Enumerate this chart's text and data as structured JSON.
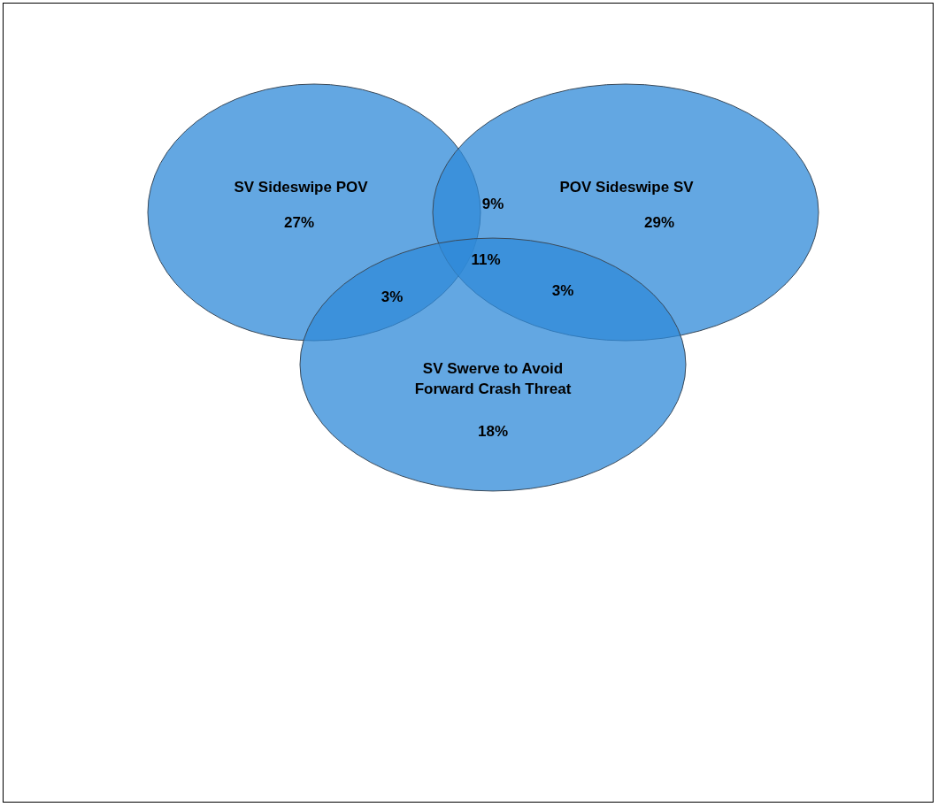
{
  "chart_data": {
    "type": "other",
    "categories": [
      "SV Sideswipe POV",
      "POV Sideswipe SV",
      "SV Swerve to Avoid Forward Crash Threat"
    ],
    "values": [
      27,
      29,
      18
    ],
    "value_labels": [
      "27%",
      "29%",
      "18%"
    ],
    "annotations": [
      "9%",
      "3%",
      "3%",
      "11%"
    ],
    "data_labels": true,
    "color": "#2f8ad8"
  }
}
